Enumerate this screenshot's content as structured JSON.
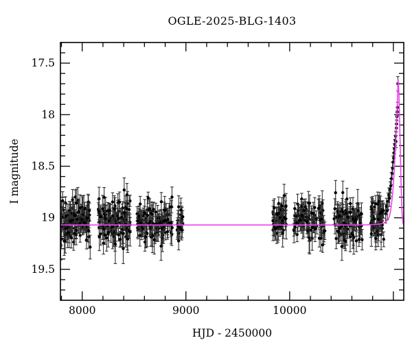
{
  "title": "OGLE-2025-BLG-1403",
  "chart_data": {
    "type": "scatter",
    "title": "OGLE-2025-BLG-1403",
    "xlabel": "HJD - 2450000",
    "ylabel": "I magnitude",
    "xlim": [
      7790,
      11100
    ],
    "ylim": [
      19.8,
      17.3
    ],
    "y_axis_inverted": true,
    "grid": false,
    "legend": "none",
    "x_labeled_ticks": [
      {
        "value": 8000,
        "label": "8000"
      },
      {
        "value": 9000,
        "label": "9000"
      },
      {
        "value": 10000,
        "label": "10000"
      }
    ],
    "x_major_ticks": [
      8000,
      9000,
      10000,
      11000
    ],
    "x_minor_step": 200,
    "y_labeled_ticks": [
      {
        "value": 17.5,
        "label": "17.5"
      },
      {
        "value": 18.0,
        "label": "18"
      },
      {
        "value": 18.5,
        "label": "18.5"
      },
      {
        "value": 19.0,
        "label": "19"
      },
      {
        "value": 19.5,
        "label": "19.5"
      }
    ],
    "y_major_ticks": [
      17.5,
      18.0,
      18.5,
      19.0,
      19.5
    ],
    "y_minor_step": 0.1,
    "colors": {
      "background": "#ffffff",
      "points": "#000000",
      "error_bars": "#2e2e2e",
      "model": "#f042f0",
      "axis": "#000000"
    },
    "baseline_mag": 19.07,
    "peak": {
      "t0": 11045,
      "peak_mag": 17.66
    },
    "seasons": [
      {
        "t_start": 7792,
        "t_end": 8080,
        "n": 115,
        "mean_mag": 19.04,
        "sigma": 0.1,
        "seed": 11
      },
      {
        "t_start": 8150,
        "t_end": 8462,
        "n": 110,
        "mean_mag": 19.03,
        "sigma": 0.1,
        "seed": 22
      },
      {
        "t_start": 8522,
        "t_end": 8868,
        "n": 105,
        "mean_mag": 19.04,
        "sigma": 0.1,
        "seed": 33
      },
      {
        "t_start": 8915,
        "t_end": 8972,
        "n": 18,
        "mean_mag": 19.05,
        "sigma": 0.1,
        "seed": 44
      },
      {
        "t_start": 9835,
        "t_end": 9968,
        "n": 45,
        "mean_mag": 19.02,
        "sigma": 0.09,
        "seed": 55
      },
      {
        "t_start": 10032,
        "t_end": 10340,
        "n": 85,
        "mean_mag": 19.04,
        "sigma": 0.1,
        "seed": 66
      },
      {
        "t_start": 10428,
        "t_end": 10700,
        "n": 85,
        "mean_mag": 19.03,
        "sigma": 0.1,
        "seed": 77
      },
      {
        "t_start": 10780,
        "t_end": 10920,
        "n": 58,
        "mean_mag": 19.02,
        "sigma": 0.09,
        "seed": 88
      }
    ],
    "rise_points": [
      [
        10925,
        18.96,
        0.09
      ],
      [
        10933,
        18.89,
        0.08
      ],
      [
        10941,
        18.93,
        0.09
      ],
      [
        10949,
        18.84,
        0.08
      ],
      [
        10956,
        18.78,
        0.07
      ],
      [
        10963,
        18.81,
        0.08
      ],
      [
        10969,
        18.72,
        0.07
      ],
      [
        10975,
        18.69,
        0.07
      ],
      [
        10981,
        18.62,
        0.06
      ],
      [
        10987,
        18.57,
        0.06
      ],
      [
        10992,
        18.52,
        0.06
      ],
      [
        10997,
        18.46,
        0.06
      ],
      [
        11002,
        18.42,
        0.05
      ],
      [
        11006,
        18.37,
        0.05
      ],
      [
        11010,
        18.33,
        0.05
      ],
      [
        11014,
        18.29,
        0.05
      ],
      [
        11018,
        18.25,
        0.05
      ],
      [
        11022,
        18.21,
        0.05
      ],
      [
        11025,
        18.26,
        0.06
      ],
      [
        11028,
        18.13,
        0.04
      ],
      [
        11031,
        18.09,
        0.04
      ],
      [
        11034,
        18.02,
        0.04
      ],
      [
        11037,
        17.97,
        0.04
      ],
      [
        11040,
        17.93,
        0.05
      ],
      [
        11043,
        17.7,
        0.07
      ]
    ],
    "model_curve": [
      [
        7790,
        19.07
      ],
      [
        9000,
        19.07
      ],
      [
        10000,
        19.07
      ],
      [
        10600,
        19.07
      ],
      [
        10750,
        19.068
      ],
      [
        10820,
        19.065
      ],
      [
        10870,
        19.06
      ],
      [
        10900,
        19.055
      ],
      [
        10925,
        19.04
      ],
      [
        10945,
        19.02
      ],
      [
        10960,
        18.99
      ],
      [
        10972,
        18.94
      ],
      [
        10982,
        18.87
      ],
      [
        10990,
        18.79
      ],
      [
        10998,
        18.7
      ],
      [
        11006,
        18.58
      ],
      [
        11014,
        18.44
      ],
      [
        11021,
        18.3
      ],
      [
        11028,
        18.14
      ],
      [
        11034,
        17.99
      ],
      [
        11039,
        17.86
      ],
      [
        11043,
        17.73
      ],
      [
        11046,
        17.66
      ],
      [
        11049,
        17.7
      ],
      [
        11053,
        17.8
      ],
      [
        11058,
        17.97
      ],
      [
        11063,
        18.18
      ],
      [
        11068,
        18.4
      ],
      [
        11073,
        18.62
      ],
      [
        11078,
        18.81
      ],
      [
        11083,
        18.94
      ],
      [
        11088,
        19.01
      ],
      [
        11093,
        19.05
      ],
      [
        11100,
        19.07
      ]
    ]
  }
}
